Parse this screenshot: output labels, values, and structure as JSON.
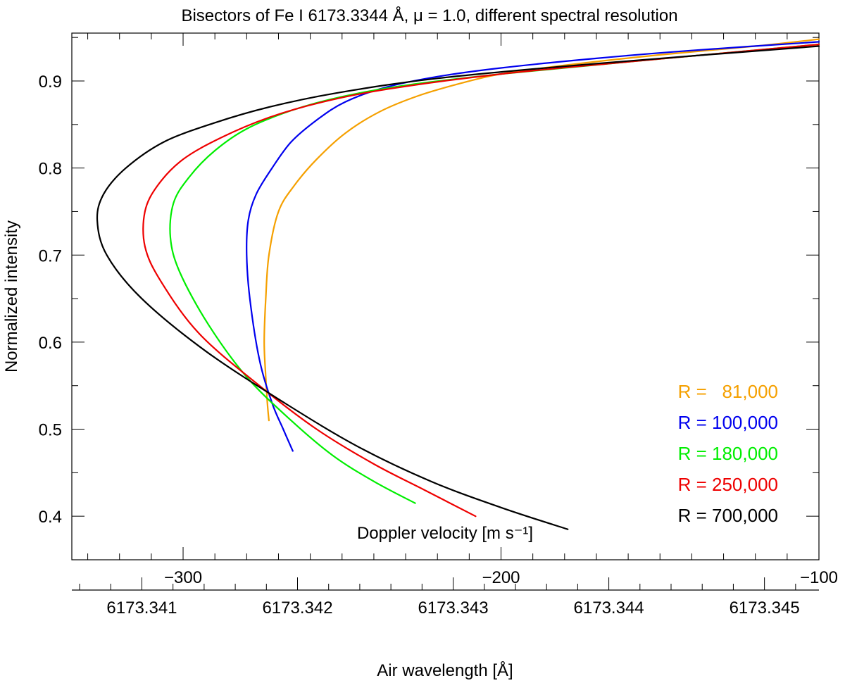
{
  "chart_data": {
    "type": "line",
    "title": "Bisectors of Fe I 6173.3344 Å, μ = 1.0, different spectral resolution",
    "xlabel": "Doppler velocity [m s⁻¹]",
    "ylabel": "Normalized intensity",
    "x2label": "Air wavelength [Å]",
    "xlim": [
      -335,
      -100
    ],
    "ylim": [
      0.35,
      0.955
    ],
    "x_ticks": [
      -300,
      -200,
      -100
    ],
    "x_tick_labels": [
      "−300",
      "−200",
      "−100"
    ],
    "y_ticks": [
      0.4,
      0.5,
      0.6,
      0.7,
      0.8,
      0.9
    ],
    "y_tick_labels": [
      "0.4",
      "0.5",
      "0.6",
      "0.7",
      "0.8",
      "0.9"
    ],
    "x2_ticks": [
      6173.341,
      6173.342,
      6173.343,
      6173.344,
      6173.345
    ],
    "x2_tick_labels": [
      "6173.341",
      "6173.342",
      "6173.343",
      "6173.344",
      "6173.345"
    ],
    "x2_lim": [
      6173.34055,
      6173.34535
    ],
    "grid": false,
    "legend_position": "bottom-right",
    "series": [
      {
        "name": "R =   81,000",
        "color": "#f5a000",
        "x": [
          -273,
          -273.5,
          -274,
          -274.5,
          -274,
          -273,
          -270,
          -265,
          -258,
          -249,
          -238,
          -226,
          -213,
          -200,
          -180,
          -150,
          -120,
          -100
        ],
        "y": [
          0.51,
          0.53,
          0.56,
          0.6,
          0.65,
          0.7,
          0.75,
          0.78,
          0.81,
          0.84,
          0.865,
          0.883,
          0.897,
          0.908,
          0.918,
          0.93,
          0.94,
          0.948
        ]
      },
      {
        "name": "R = 100,000",
        "color": "#0000ee",
        "x": [
          -265.5,
          -268.5,
          -272,
          -276,
          -279,
          -280,
          -279.5,
          -277,
          -272,
          -266,
          -258,
          -249,
          -236,
          -220,
          -200,
          -170,
          -140,
          -100
        ],
        "y": [
          0.475,
          0.5,
          0.53,
          0.58,
          0.65,
          0.7,
          0.74,
          0.77,
          0.8,
          0.83,
          0.855,
          0.876,
          0.893,
          0.905,
          0.915,
          0.926,
          0.935,
          0.945
        ]
      },
      {
        "name": "R = 180,000",
        "color": "#00ee00",
        "x": [
          -227,
          -240,
          -253,
          -266,
          -280,
          -292,
          -301,
          -304,
          -303,
          -298,
          -290,
          -280,
          -266,
          -250,
          -230,
          -200,
          -160,
          -100
        ],
        "y": [
          0.415,
          0.44,
          0.47,
          0.51,
          0.56,
          0.62,
          0.68,
          0.72,
          0.76,
          0.79,
          0.82,
          0.845,
          0.866,
          0.882,
          0.895,
          0.908,
          0.922,
          0.942
        ]
      },
      {
        "name": "R = 250,000",
        "color": "#ee0000",
        "x": [
          -208,
          -224,
          -240,
          -258,
          -276,
          -295,
          -307,
          -312,
          -312,
          -308,
          -300,
          -288,
          -273,
          -256,
          -235,
          -200,
          -160,
          -100
        ],
        "y": [
          0.4,
          0.43,
          0.46,
          0.5,
          0.55,
          0.61,
          0.67,
          0.71,
          0.75,
          0.78,
          0.81,
          0.835,
          0.858,
          0.876,
          0.891,
          0.908,
          0.922,
          0.942
        ]
      },
      {
        "name": "R = 700,000",
        "color": "#000000",
        "x": [
          -179,
          -200,
          -222,
          -245,
          -268,
          -293,
          -313,
          -324,
          -327,
          -325,
          -318,
          -306,
          -290,
          -273,
          -252,
          -220,
          -170,
          -100
        ],
        "y": [
          0.385,
          0.41,
          0.44,
          0.48,
          0.53,
          0.59,
          0.65,
          0.7,
          0.74,
          0.77,
          0.8,
          0.83,
          0.852,
          0.87,
          0.886,
          0.903,
          0.92,
          0.94
        ]
      }
    ]
  }
}
